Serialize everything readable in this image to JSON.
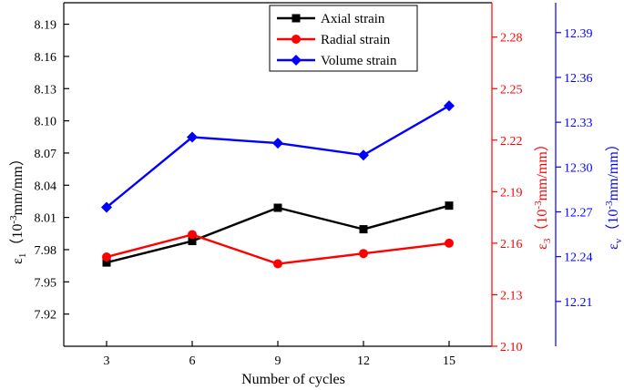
{
  "chart_data": {
    "type": "line",
    "xlabel": "Number of cycles",
    "x": [
      3,
      6,
      9,
      12,
      15
    ],
    "x_ticks": [
      "3",
      "6",
      "9",
      "12",
      "15"
    ],
    "left_axis": {
      "label_symbol": "ε",
      "label_sub": "1",
      "label_rest": "（10",
      "label_sup": "-3",
      "label_unit": "mm/mm）",
      "ylim": [
        7.89,
        8.21
      ],
      "ticks": [
        "7.92",
        "7.95",
        "7.98",
        "8.01",
        "8.04",
        "8.07",
        "8.10",
        "8.13",
        "8.16",
        "8.19"
      ],
      "color": "#000000"
    },
    "mid_axis": {
      "label_symbol": "ε",
      "label_sub": "3",
      "label_rest": "（10",
      "label_sup": "-3",
      "label_unit": "mm/mm）",
      "ylim": [
        2.1,
        2.3
      ],
      "ticks": [
        "2.10",
        "2.13",
        "2.16",
        "2.19",
        "2.22",
        "2.25",
        "2.28"
      ],
      "color": "#ff0000"
    },
    "right_axis": {
      "label_symbol": "ε",
      "label_sub": "v",
      "label_rest": "（10",
      "label_sup": "-3",
      "label_unit": "mm/mm）",
      "ylim": [
        12.18,
        12.41
      ],
      "ticks": [
        "12.21",
        "12.24",
        "12.27",
        "12.30",
        "12.33",
        "12.36",
        "12.39"
      ],
      "color": "#0000ff"
    },
    "series": [
      {
        "name": "Axial strain",
        "axis": "left",
        "color": "#000000",
        "marker": "square",
        "values": [
          7.968,
          7.988,
          8.019,
          7.999,
          8.021
        ]
      },
      {
        "name": "Radial strain",
        "axis": "mid",
        "color": "#ff0000",
        "marker": "circle",
        "values": [
          2.152,
          2.165,
          2.148,
          2.154,
          2.16
        ]
      },
      {
        "name": "Volume strain",
        "axis": "right",
        "color": "#0000ff",
        "marker": "diamond",
        "values": [
          12.273,
          12.32,
          12.316,
          12.308,
          12.341
        ]
      }
    ],
    "legend_position": "top-right"
  }
}
